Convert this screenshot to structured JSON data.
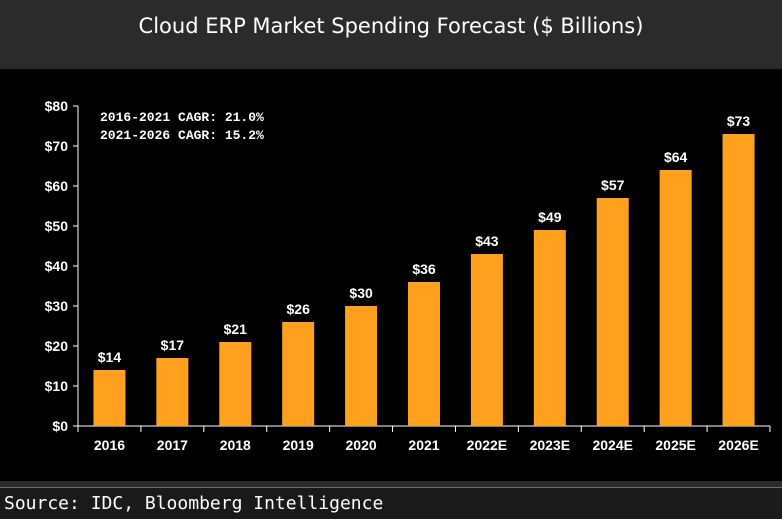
{
  "title": "Cloud ERP Market Spending Forecast ($ Billions)",
  "source": "Source: IDC, Bloomberg Intelligence",
  "annotations": [
    "2016-2021 CAGR: 21.0%",
    "2021-2026 CAGR: 15.2%"
  ],
  "colors": {
    "bar": "#ffa11f",
    "background": "#000000",
    "frame": "#2b2b2b"
  },
  "chart_data": {
    "type": "bar",
    "categories": [
      "2016",
      "2017",
      "2018",
      "2019",
      "2020",
      "2021",
      "2022E",
      "2023E",
      "2024E",
      "2025E",
      "2026E"
    ],
    "values": [
      14,
      17,
      21,
      26,
      30,
      36,
      43,
      49,
      57,
      64,
      73
    ],
    "data_labels": [
      "$14",
      "$17",
      "$21",
      "$26",
      "$30",
      "$36",
      "$43",
      "$49",
      "$57",
      "$64",
      "$73"
    ],
    "y_ticks": [
      "$0",
      "$10",
      "$20",
      "$30",
      "$40",
      "$50",
      "$60",
      "$70",
      "$80"
    ],
    "ylim": [
      0,
      80
    ],
    "title": "Cloud ERP Market Spending Forecast ($ Billions)",
    "xlabel": "",
    "ylabel": "",
    "grid": false,
    "legend": "none"
  }
}
